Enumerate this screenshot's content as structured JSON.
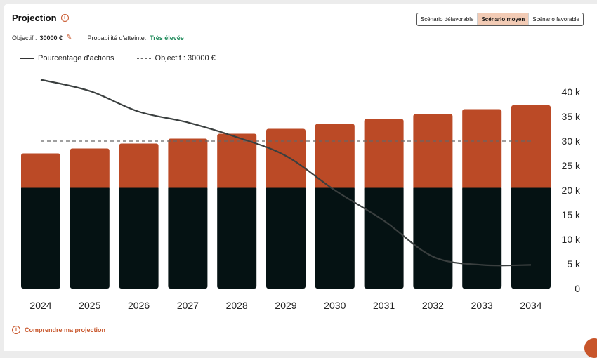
{
  "header": {
    "title": "Projection",
    "scenarios": [
      "Scénario défavorable",
      "Scénario moyen",
      "Scénario favorable"
    ],
    "active_scenario": 1
  },
  "meta": {
    "objective_label": "Objectif :",
    "objective_value": "30000 €",
    "probability_label": "Probabilité d'atteinte:",
    "probability_value": "Très élevée"
  },
  "footer": {
    "link_label": "Comprendre ma projection"
  },
  "colors": {
    "base": "#051213",
    "gain": "#bb4a26",
    "line": "#3a3f3f",
    "objective": "#666666",
    "accent": "#c8552a"
  },
  "chart_data": {
    "type": "bar",
    "stacked": true,
    "categories": [
      "2024",
      "2025",
      "2026",
      "2027",
      "2028",
      "2029",
      "2030",
      "2031",
      "2032",
      "2033",
      "2034"
    ],
    "series": [
      {
        "values": [
          20500,
          20500,
          20500,
          20500,
          20500,
          20500,
          20500,
          20500,
          20500,
          20500,
          20500
        ]
      },
      {
        "values": [
          7000,
          8000,
          9000,
          10000,
          11000,
          12000,
          13000,
          14000,
          15000,
          16000,
          16800
        ]
      }
    ],
    "line_series": {
      "name": "Pourcentage d'actions",
      "values": [
        42500,
        40200,
        36000,
        33800,
        30800,
        27000,
        20000,
        13800,
        6500,
        4800,
        4800
      ]
    },
    "objective": {
      "name": "Objectif : 30000 €",
      "value": 30000
    },
    "y_ticks": [
      "0",
      "5 k",
      "10 k",
      "15 k",
      "20 k",
      "25 k",
      "30 k",
      "35 k",
      "40 k"
    ],
    "ylim": [
      0,
      40000
    ],
    "legend_position": "top-left",
    "grid": false
  }
}
